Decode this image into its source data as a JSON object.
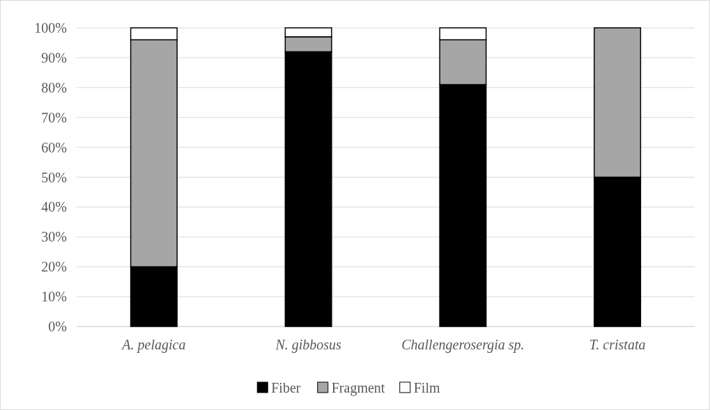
{
  "chart_data": {
    "type": "bar",
    "stacked": true,
    "categories": [
      "A. pelagica",
      "N. gibbosus",
      "Challengerosergia sp.",
      "T. cristata"
    ],
    "series": [
      {
        "name": "Fiber",
        "color": "#000000",
        "values": [
          20,
          92,
          81,
          50
        ]
      },
      {
        "name": "Fragment",
        "color": "#a6a6a6",
        "values": [
          76,
          5,
          15,
          50
        ]
      },
      {
        "name": "Film",
        "color": "#ffffff",
        "values": [
          4,
          3,
          4,
          0
        ]
      }
    ],
    "ylim": [
      0,
      100
    ],
    "yticks": [
      {
        "value": 0,
        "label": "0%"
      },
      {
        "value": 10,
        "label": "10%"
      },
      {
        "value": 20,
        "label": "20%"
      },
      {
        "value": 30,
        "label": "30%"
      },
      {
        "value": 40,
        "label": "40%"
      },
      {
        "value": 50,
        "label": "50%"
      },
      {
        "value": 60,
        "label": "60%"
      },
      {
        "value": 70,
        "label": "70%"
      },
      {
        "value": 80,
        "label": "80%"
      },
      {
        "value": 90,
        "label": "90%"
      },
      {
        "value": 100,
        "label": "100%"
      }
    ],
    "grid": "y",
    "legend": "bottom"
  }
}
